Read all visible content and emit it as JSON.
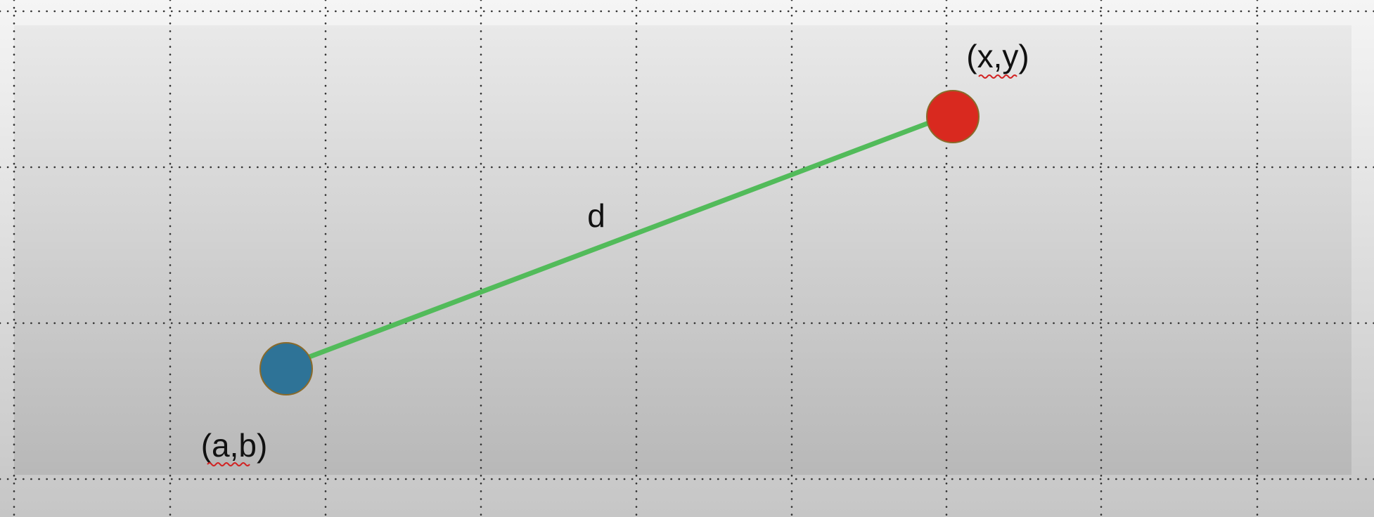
{
  "points": {
    "start": {
      "label": "(a,b)",
      "color": "#2e7397"
    },
    "end": {
      "label": "(x,y)",
      "color": "#d9291f"
    }
  },
  "segment": {
    "label": "d",
    "color": "#52bb5a"
  },
  "colors": {
    "panel_top": "#e9e9e9",
    "panel_bottom": "#b8b8b8",
    "outline": "#8a6a2a",
    "grid_dots": "#333333",
    "spellcheck_underline": "#d22222"
  }
}
